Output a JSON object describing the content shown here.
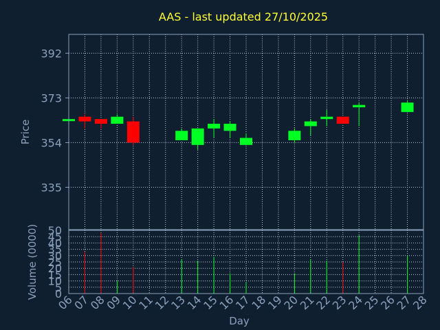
{
  "chart_data": {
    "type": "candlestick",
    "title": "AAS - last updated 27/10/2025",
    "price_panel": {
      "ylabel": "Price",
      "ylim": [
        317,
        400
      ],
      "yticks": [
        335,
        354,
        373,
        392
      ]
    },
    "volume_panel": {
      "ylabel": "Volume (0000)",
      "ylim": [
        0,
        50
      ],
      "yticks": [
        0,
        5,
        10,
        15,
        20,
        25,
        30,
        35,
        40,
        45,
        50
      ]
    },
    "xlabel": "Day",
    "x_ticks": [
      "06",
      "07",
      "08",
      "09",
      "10",
      "11",
      "12",
      "13",
      "14",
      "15",
      "16",
      "17",
      "18",
      "19",
      "20",
      "21",
      "22",
      "23",
      "24",
      "25",
      "26",
      "27",
      "28"
    ],
    "grid": true,
    "colors": {
      "up": "#00ff22",
      "down": "#ff0000",
      "grid": "#bfcbd8",
      "axis": "#8aa0bb",
      "title": "#ffff33",
      "background": "#0f1f30"
    },
    "candles": [
      {
        "day": "06",
        "open": 364,
        "close": 364,
        "high": 364,
        "low": 364,
        "volume": 0
      },
      {
        "day": "07",
        "open": 365,
        "close": 363,
        "high": 366,
        "low": 360,
        "volume": 33
      },
      {
        "day": "08",
        "open": 364,
        "close": 362,
        "high": 364,
        "low": 360,
        "volume": 48
      },
      {
        "day": "09",
        "open": 362,
        "close": 365,
        "high": 366,
        "low": 362,
        "volume": 10
      },
      {
        "day": "10",
        "open": 363,
        "close": 354,
        "high": 365,
        "low": 353,
        "volume": 21
      },
      {
        "day": "13",
        "open": 355,
        "close": 359,
        "high": 360,
        "low": 355,
        "volume": 27
      },
      {
        "day": "14",
        "open": 353,
        "close": 360,
        "high": 360,
        "low": 351,
        "volume": 26
      },
      {
        "day": "15",
        "open": 360,
        "close": 362,
        "high": 364,
        "low": 356,
        "volume": 29
      },
      {
        "day": "16",
        "open": 359,
        "close": 362,
        "high": 363,
        "low": 356,
        "volume": 16
      },
      {
        "day": "17",
        "open": 353,
        "close": 356,
        "high": 358,
        "low": 353,
        "volume": 9
      },
      {
        "day": "20",
        "open": 355,
        "close": 359,
        "high": 360,
        "low": 354,
        "volume": 16
      },
      {
        "day": "21",
        "open": 361,
        "close": 363,
        "high": 364,
        "low": 357,
        "volume": 27
      },
      {
        "day": "22",
        "open": 364,
        "close": 365,
        "high": 368,
        "low": 361,
        "volume": 26
      },
      {
        "day": "23",
        "open": 365,
        "close": 362,
        "high": 365,
        "low": 362,
        "volume": 25
      },
      {
        "day": "24",
        "open": 369,
        "close": 370,
        "high": 371,
        "low": 361,
        "volume": 46
      },
      {
        "day": "27",
        "open": 367,
        "close": 371,
        "high": 372,
        "low": 367,
        "volume": 30
      }
    ]
  }
}
